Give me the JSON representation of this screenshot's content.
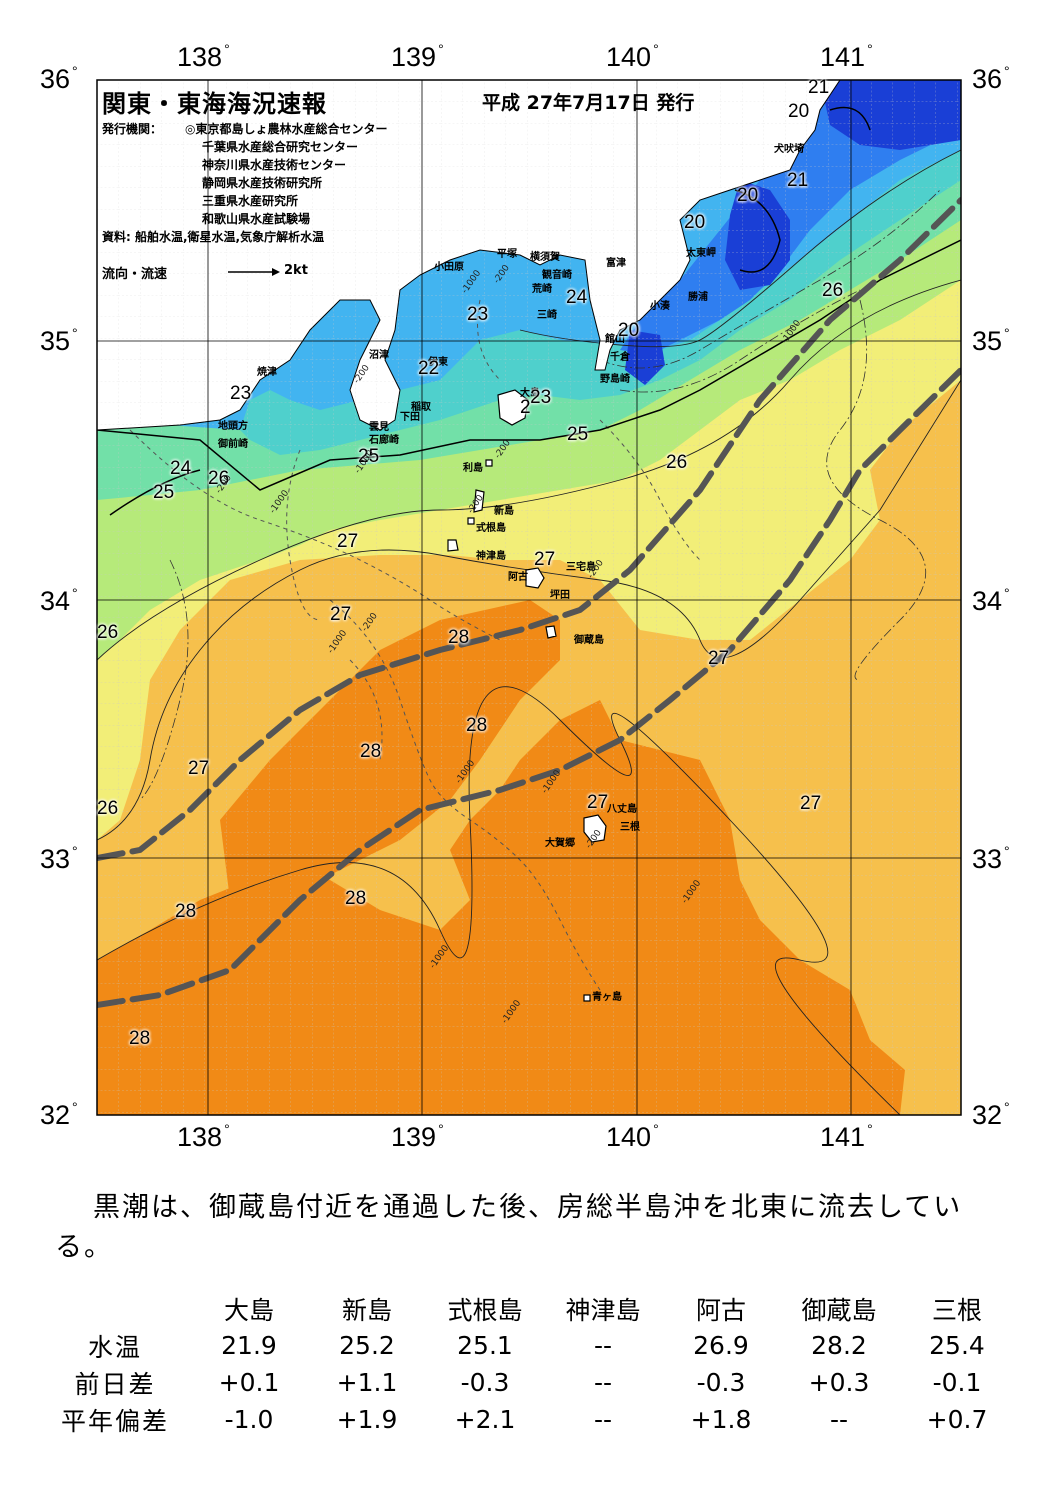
{
  "map": {
    "title": "関東・東海海況速報",
    "date": "平成 27年7月17日 発行",
    "publisher_label": "発行機関：",
    "publishers": [
      "◎東京都島しょ農林水産総合センター",
      "千葉県水産総合研究センター",
      "神奈川県水産技術センター",
      "静岡県水産技術研究所",
      "三重県水産研究所",
      "和歌山県水産試験場"
    ],
    "source": "資料: 船舶水温,衛星水温,気象庁解析水温",
    "legend_label": "流向・流速",
    "legend_scale": "2kt",
    "lon_ticks": [
      "138",
      "139",
      "140",
      "141"
    ],
    "lat_ticks": [
      "36",
      "35",
      "34",
      "33",
      "32"
    ],
    "colors": {
      "t20": "#1a3fd6",
      "t21": "#2f7ef0",
      "t22": "#42b4f0",
      "t23": "#4fd0cc",
      "t24": "#72e0a8",
      "t25": "#b6ea7a",
      "t26": "#f2ee78",
      "t27": "#f6c04c",
      "t28": "#f18a16",
      "kuroshio": "#555555"
    },
    "place_names": [
      "小田原",
      "平塚",
      "横須賀",
      "観音崎",
      "富津",
      "荒崎",
      "三崎",
      "館山",
      "千倉",
      "野島崎",
      "小湊",
      "勝浦",
      "太東岬",
      "犬吠埼",
      "沼津",
      "伊東",
      "焼津",
      "稲取",
      "下田",
      "雲見",
      "石廊崎",
      "地頭方",
      "御前崎",
      "大島",
      "利島",
      "新島",
      "式根島",
      "神津島",
      "三宅島",
      "阿古",
      "坪田",
      "御蔵島",
      "八丈島",
      "三根",
      "大賀郷",
      "青ヶ島"
    ],
    "isotherm_labels": [
      "21",
      "20",
      "21",
      "20",
      "20",
      "26",
      "24",
      "23",
      "20",
      "22",
      "23",
      "23",
      "2",
      "25",
      "25",
      "26",
      "24",
      "26",
      "25",
      "27",
      "27",
      "27",
      "26",
      "28",
      "27",
      "28",
      "28",
      "27",
      "26",
      "27",
      "27",
      "28",
      "28",
      "28"
    ],
    "depth_labels": [
      "-200",
      "-1000"
    ]
  },
  "summary": "黒潮は、御蔵島付近を通過した後、房総半島沖を北東に流去している。",
  "table": {
    "columns": [
      "大島",
      "新島",
      "式根島",
      "神津島",
      "阿古",
      "御蔵島",
      "三根"
    ],
    "rows": [
      {
        "label": "水温",
        "values": [
          "21.9",
          "25.2",
          "25.1",
          "--",
          "26.9",
          "28.2",
          "25.4"
        ]
      },
      {
        "label": "前日差",
        "values": [
          "+0.1",
          "+1.1",
          "-0.3",
          "--",
          "-0.3",
          "+0.3",
          "-0.1"
        ]
      },
      {
        "label": "平年偏差",
        "values": [
          "-1.0",
          "+1.9",
          "+2.1",
          "--",
          "+1.8",
          "--",
          "+0.7"
        ]
      }
    ]
  }
}
